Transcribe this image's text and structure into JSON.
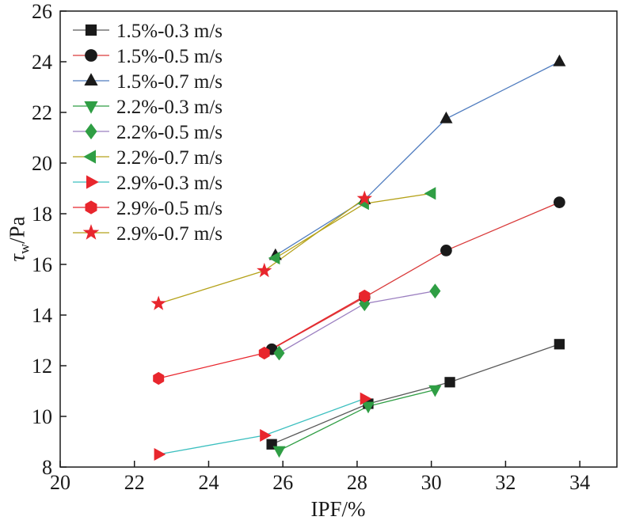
{
  "chart_data": {
    "type": "scatter",
    "title": "",
    "xlabel": "IPF/%",
    "ylabel": {
      "symbol": "τ",
      "subscript": "w",
      "rest": "/Pa"
    },
    "xlim": [
      20,
      35
    ],
    "ylim": [
      8,
      26
    ],
    "xticks": [
      20,
      22,
      24,
      26,
      28,
      30,
      32,
      34
    ],
    "yticks": [
      8,
      10,
      12,
      14,
      16,
      18,
      20,
      22,
      24,
      26
    ],
    "grid": false,
    "legend_position": "top-left",
    "series": [
      {
        "name": "1.5%-0.3 m/s",
        "marker": "square",
        "marker_color": "#1a1a1a",
        "line_color": "#595959",
        "points": [
          [
            25.7,
            8.9
          ],
          [
            28.3,
            10.5
          ],
          [
            30.5,
            11.35
          ],
          [
            33.45,
            12.85
          ]
        ]
      },
      {
        "name": "1.5%-0.5 m/s",
        "marker": "circle",
        "marker_color": "#1a1a1a",
        "line_color": "#d93a3a",
        "points": [
          [
            25.7,
            12.65
          ],
          [
            28.2,
            14.7
          ],
          [
            30.4,
            16.55
          ],
          [
            33.45,
            18.45
          ]
        ]
      },
      {
        "name": "1.5%-0.7 m/s",
        "marker": "triangle-up",
        "marker_color": "#1a1a1a",
        "line_color": "#4f7cbf",
        "points": [
          [
            25.8,
            16.35
          ],
          [
            28.2,
            18.55
          ],
          [
            30.4,
            21.75
          ],
          [
            33.45,
            24.0
          ]
        ]
      },
      {
        "name": "2.2%-0.3 m/s",
        "marker": "triangle-down",
        "marker_color": "#2f9e44",
        "line_color": "#2f9e44",
        "points": [
          [
            25.9,
            8.65
          ],
          [
            28.3,
            10.4
          ],
          [
            30.1,
            11.05
          ]
        ]
      },
      {
        "name": "2.2%-0.5 m/s",
        "marker": "diamond",
        "marker_color": "#2f9e44",
        "line_color": "#9b7fc0",
        "points": [
          [
            25.9,
            12.5
          ],
          [
            28.2,
            14.45
          ],
          [
            30.1,
            14.95
          ]
        ]
      },
      {
        "name": "2.2%-0.7 m/s",
        "marker": "triangle-left",
        "marker_color": "#2f9e44",
        "line_color": "#b5a21a",
        "points": [
          [
            25.8,
            16.25
          ],
          [
            28.2,
            18.4
          ],
          [
            30.0,
            18.8
          ]
        ]
      },
      {
        "name": "2.9%-0.3 m/s",
        "marker": "triangle-right",
        "marker_color": "#e8262d",
        "line_color": "#3bbfbf",
        "points": [
          [
            22.65,
            8.5
          ],
          [
            25.5,
            9.25
          ],
          [
            28.2,
            10.7
          ]
        ]
      },
      {
        "name": "2.9%-0.5 m/s",
        "marker": "hexagon",
        "marker_color": "#e8262d",
        "line_color": "#e8262d",
        "points": [
          [
            22.65,
            11.5
          ],
          [
            25.5,
            12.5
          ],
          [
            28.2,
            14.75
          ]
        ]
      },
      {
        "name": "2.9%-0.7 m/s",
        "marker": "star",
        "marker_color": "#e8262d",
        "line_color": "#b5a21a",
        "points": [
          [
            22.65,
            14.45
          ],
          [
            25.5,
            15.75
          ],
          [
            28.2,
            18.6
          ]
        ]
      }
    ]
  }
}
